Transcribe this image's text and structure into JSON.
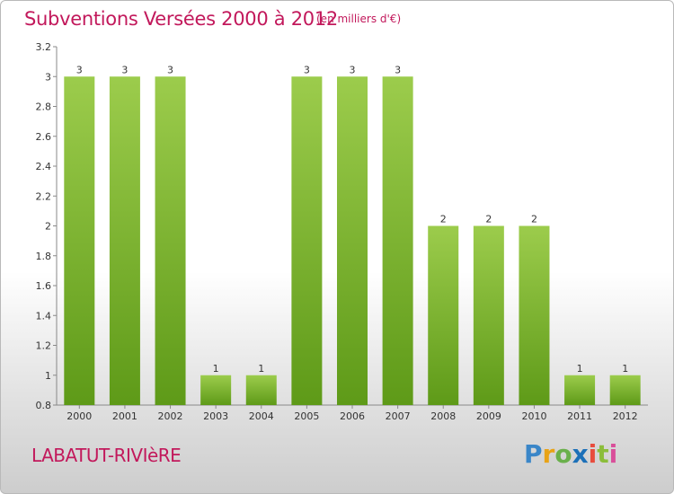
{
  "header": {
    "title": "Subventions Versées 2000 à 2012",
    "unit": "(en milliers d'€)"
  },
  "footer": {
    "commune": "LABATUT-RIVIèRE",
    "brand": [
      "P",
      "r",
      "o",
      "x",
      "i",
      "t",
      "i"
    ]
  },
  "colors": {
    "accent": "#c2185b",
    "bar_top": "#9ccc4c",
    "bar_bottom": "#5e9a18"
  },
  "chart_data": {
    "type": "bar",
    "title": "Subventions Versées 2000 à 2012",
    "subtitle": "(en milliers d'€)",
    "xlabel": "",
    "ylabel": "",
    "categories": [
      "2000",
      "2001",
      "2002",
      "2003",
      "2004",
      "2005",
      "2006",
      "2007",
      "2008",
      "2009",
      "2010",
      "2011",
      "2012"
    ],
    "values": [
      3,
      3,
      3,
      1,
      1,
      3,
      3,
      3,
      2,
      2,
      2,
      1,
      1
    ],
    "data_labels": [
      "3",
      "3",
      "3",
      "1",
      "1",
      "3",
      "3",
      "3",
      "2",
      "2",
      "2",
      "1",
      "1"
    ],
    "ylim": [
      0.8,
      3.2
    ],
    "yticks": [
      0.8,
      1,
      1.2,
      1.4,
      1.6,
      1.8,
      2,
      2.2,
      2.4,
      2.6,
      2.8,
      3,
      3.2
    ],
    "ytick_labels": [
      "0.8",
      "1",
      "1.2",
      "1.4",
      "1.6",
      "1.8",
      "2",
      "2.2",
      "2.4",
      "2.6",
      "2.8",
      "3",
      "3.2"
    ],
    "grid": false,
    "legend": "none"
  }
}
